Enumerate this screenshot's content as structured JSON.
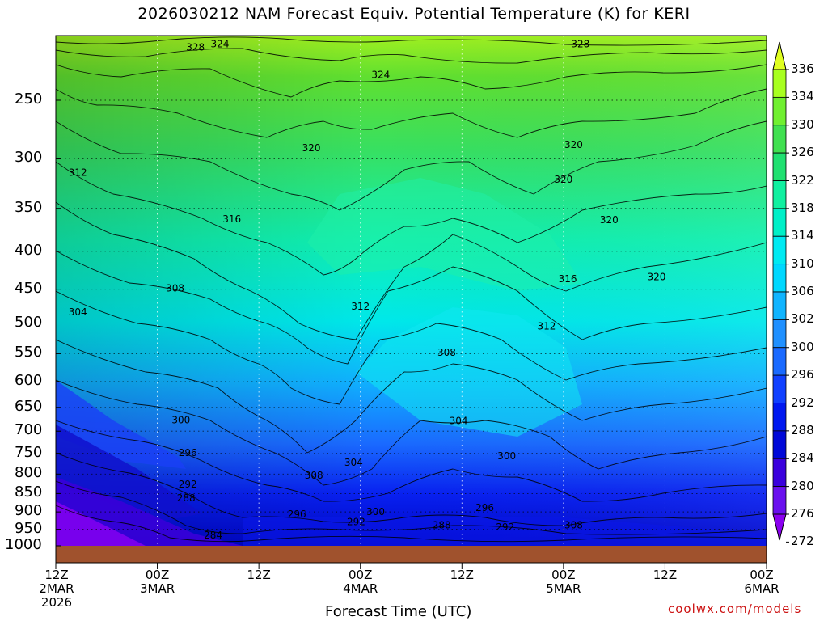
{
  "chart_data": {
    "type": "heatmap",
    "title": "2026030212 NAM Forecast Equiv. Potential Temperature (K) for KERI",
    "xlabel": "Forecast Time (UTC)",
    "ylabel": "",
    "credit": "coolwx.com/models",
    "x_ticks": [
      {
        "l1": "12Z",
        "l2": "2MAR",
        "l3": "2026",
        "hour": 0
      },
      {
        "l1": "00Z",
        "l2": "3MAR",
        "l3": "",
        "hour": 12
      },
      {
        "l1": "12Z",
        "l2": "",
        "l3": "",
        "hour": 24
      },
      {
        "l1": "00Z",
        "l2": "4MAR",
        "l3": "",
        "hour": 36
      },
      {
        "l1": "12Z",
        "l2": "",
        "l3": "",
        "hour": 48
      },
      {
        "l1": "00Z",
        "l2": "5MAR",
        "l3": "",
        "hour": 60
      },
      {
        "l1": "12Z",
        "l2": "",
        "l3": "",
        "hour": 72
      },
      {
        "l1": "00Z",
        "l2": "6MAR",
        "l3": "",
        "hour": 84
      }
    ],
    "y_axis": {
      "scale": "log-pressure",
      "range": [
        1000,
        200
      ],
      "ticks": [
        250,
        300,
        350,
        400,
        450,
        500,
        550,
        600,
        650,
        700,
        750,
        800,
        850,
        900,
        950,
        1000
      ]
    },
    "grid": true,
    "colorbar": {
      "levels": [
        272,
        276,
        280,
        284,
        288,
        292,
        296,
        300,
        302,
        306,
        310,
        314,
        318,
        322,
        326,
        330,
        334,
        336
      ],
      "colors": [
        "#8a00f0",
        "#6a10ee",
        "#3a00dd",
        "#0008d8",
        "#0018f0",
        "#1040ff",
        "#1a6aff",
        "#2090ff",
        "#10b4ff",
        "#00d8ff",
        "#00eaf2",
        "#00f0c8",
        "#10f0a0",
        "#20e070",
        "#40e050",
        "#70f030",
        "#a8ff20",
        "#e0ff20"
      ]
    },
    "contour_labels": [
      {
        "text": "328",
        "hour": 16.5,
        "p": 212
      },
      {
        "text": "324",
        "hour": 19.4,
        "p": 210
      },
      {
        "text": "328",
        "hour": 62,
        "p": 210
      },
      {
        "text": "324",
        "hour": 38.4,
        "p": 231
      },
      {
        "text": "320",
        "hour": 30.2,
        "p": 290
      },
      {
        "text": "320",
        "hour": 61.2,
        "p": 287
      },
      {
        "text": "320",
        "hour": 60,
        "p": 320
      },
      {
        "text": "312",
        "hour": 2.6,
        "p": 313
      },
      {
        "text": "316",
        "hour": 20.8,
        "p": 362
      },
      {
        "text": "320",
        "hour": 65.4,
        "p": 363
      },
      {
        "text": "316",
        "hour": 60.5,
        "p": 436
      },
      {
        "text": "320",
        "hour": 71,
        "p": 433
      },
      {
        "text": "308",
        "hour": 14.1,
        "p": 449
      },
      {
        "text": "312",
        "hour": 36,
        "p": 475
      },
      {
        "text": "304",
        "hour": 2.6,
        "p": 483
      },
      {
        "text": "312",
        "hour": 58,
        "p": 505
      },
      {
        "text": "308",
        "hour": 46.2,
        "p": 548
      },
      {
        "text": "300",
        "hour": 14.8,
        "p": 676
      },
      {
        "text": "304",
        "hour": 47.6,
        "p": 678
      },
      {
        "text": "296",
        "hour": 15.6,
        "p": 749
      },
      {
        "text": "300",
        "hour": 53.3,
        "p": 756
      },
      {
        "text": "304",
        "hour": 35.2,
        "p": 772
      },
      {
        "text": "308",
        "hour": 30.5,
        "p": 803
      },
      {
        "text": "292",
        "hour": 15.6,
        "p": 826
      },
      {
        "text": "288",
        "hour": 15.4,
        "p": 862
      },
      {
        "text": "296",
        "hour": 50.7,
        "p": 889
      },
      {
        "text": "300",
        "hour": 37.8,
        "p": 900
      },
      {
        "text": "296",
        "hour": 28.5,
        "p": 907
      },
      {
        "text": "292",
        "hour": 35.5,
        "p": 928
      },
      {
        "text": "288",
        "hour": 45.6,
        "p": 938
      },
      {
        "text": "292",
        "hour": 53.1,
        "p": 944
      },
      {
        "text": "308",
        "hour": 61.2,
        "p": 938
      },
      {
        "text": "284",
        "hour": 18.6,
        "p": 968
      }
    ]
  }
}
